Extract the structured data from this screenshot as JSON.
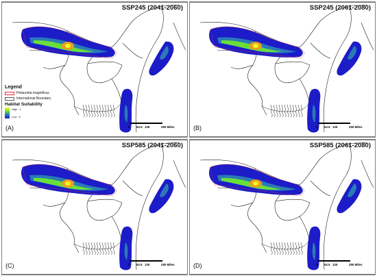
{
  "panels": [
    {
      "title": "SSP245 (2041-2060)",
      "letter": "(A)"
    },
    {
      "title": "SSP245 (2061-2080)",
      "letter": "(B)"
    },
    {
      "title": "SSP585 (2041-2060)",
      "letter": "(C)"
    },
    {
      "title": "SSP585 (2061-2080)",
      "letter": "(D)"
    }
  ],
  "legend": {
    "title": "Legend",
    "items": [
      {
        "label": "Petaurista magnificus",
        "color": "#e0303a"
      },
      {
        "label": "International Boundary",
        "color": "#555555"
      }
    ],
    "suitability_title": "Habitat Suitability",
    "high_label": "High : 1",
    "low_label": "Low : 0"
  },
  "scale": {
    "ticks": [
      "0",
      "62.5",
      "125",
      "250 Miles"
    ]
  },
  "colors": {
    "low": "#1c1cc8",
    "mid": "#2a7ab8",
    "green": "#6adf3a",
    "high": "#f4ff20",
    "hot": "#e8a020",
    "boundary": "#1a1a1a"
  }
}
